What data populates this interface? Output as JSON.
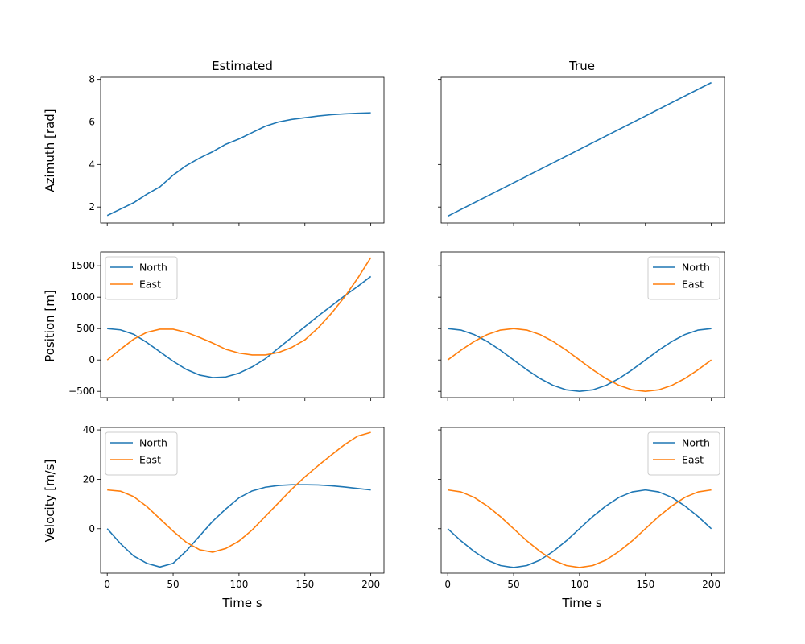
{
  "colors": {
    "north": "#1f77b4",
    "east": "#ff7f0e",
    "azimuth": "#1f77b4"
  },
  "column_titles": [
    "Estimated",
    "True"
  ],
  "row_labels": [
    "Azimuth [rad]",
    "Position [m]",
    "Velocity [m/s]"
  ],
  "xlabel": "Time s",
  "x_ticks": [
    "0",
    "50",
    "100",
    "150",
    "200"
  ],
  "legend_labels": [
    "North",
    "East"
  ],
  "chart_data": [
    {
      "type": "line",
      "panel": "azimuth-estimated",
      "title": "Estimated",
      "ylabel": "Azimuth [rad]",
      "xlim": [
        -5,
        210
      ],
      "ylim": [
        1.25,
        8.1
      ],
      "yticks": [
        2,
        4,
        6,
        8
      ],
      "grid": false,
      "x": [
        0,
        10,
        20,
        30,
        40,
        50,
        60,
        70,
        80,
        90,
        100,
        110,
        120,
        130,
        140,
        150,
        160,
        170,
        180,
        190,
        200
      ],
      "series": [
        {
          "values": [
            1.6,
            1.9,
            2.2,
            2.6,
            2.95,
            3.5,
            3.95,
            4.3,
            4.6,
            4.95,
            5.2,
            5.5,
            5.8,
            6.0,
            6.12,
            6.2,
            6.28,
            6.34,
            6.38,
            6.41,
            6.43
          ]
        }
      ]
    },
    {
      "type": "line",
      "panel": "azimuth-true",
      "title": "True",
      "xlim": [
        -5,
        210
      ],
      "ylim": [
        1.25,
        8.1
      ],
      "yticks": [
        2,
        4,
        6,
        8
      ],
      "grid": false,
      "x": [
        0,
        200
      ],
      "series": [
        {
          "values": [
            1.57,
            7.85
          ]
        }
      ]
    },
    {
      "type": "line",
      "panel": "position-estimated",
      "ylabel": "Position [m]",
      "xlim": [
        -5,
        210
      ],
      "ylim": [
        -600,
        1720
      ],
      "yticks": [
        -500,
        0,
        500,
        1000,
        1500
      ],
      "grid": false,
      "legend": "top-left",
      "x": [
        0,
        10,
        20,
        30,
        40,
        50,
        60,
        70,
        80,
        90,
        100,
        110,
        120,
        130,
        140,
        150,
        160,
        170,
        180,
        190,
        200
      ],
      "series": [
        {
          "name": "North",
          "values": [
            500,
            480,
            410,
            280,
            130,
            -20,
            -150,
            -240,
            -280,
            -270,
            -210,
            -110,
            20,
            190,
            360,
            530,
            700,
            860,
            1020,
            1170,
            1330
          ]
        },
        {
          "name": "East",
          "values": [
            0,
            170,
            330,
            440,
            490,
            490,
            440,
            360,
            270,
            170,
            110,
            80,
            80,
            120,
            200,
            320,
            510,
            740,
            1000,
            1300,
            1630
          ]
        }
      ]
    },
    {
      "type": "line",
      "panel": "position-true",
      "xlim": [
        -5,
        210
      ],
      "ylim": [
        -600,
        1720
      ],
      "yticks": [
        -500,
        0,
        500,
        1000,
        1500
      ],
      "grid": false,
      "legend": "top-right",
      "x": [
        0,
        10,
        20,
        30,
        40,
        50,
        60,
        70,
        80,
        90,
        100,
        110,
        120,
        130,
        140,
        150,
        160,
        170,
        180,
        190,
        200
      ],
      "series": [
        {
          "name": "North",
          "values": [
            500,
            476,
            405,
            294,
            155,
            0,
            -155,
            -294,
            -405,
            -476,
            -500,
            -476,
            -405,
            -294,
            -155,
            0,
            155,
            294,
            405,
            476,
            500
          ]
        },
        {
          "name": "East",
          "values": [
            0,
            155,
            294,
            405,
            476,
            500,
            476,
            405,
            294,
            155,
            0,
            -155,
            -294,
            -405,
            -476,
            -500,
            -476,
            -405,
            -294,
            -155,
            0
          ]
        }
      ]
    },
    {
      "type": "line",
      "panel": "velocity-estimated",
      "ylabel": "Velocity [m/s]",
      "xlabel": "Time s",
      "xlim": [
        -5,
        210
      ],
      "ylim": [
        -18,
        41
      ],
      "yticks": [
        0,
        20,
        40
      ],
      "xticks": [
        0,
        50,
        100,
        150,
        200
      ],
      "grid": false,
      "legend": "top-left",
      "x": [
        0,
        10,
        20,
        30,
        40,
        50,
        60,
        70,
        80,
        90,
        100,
        110,
        120,
        130,
        140,
        150,
        160,
        170,
        180,
        190,
        200
      ],
      "series": [
        {
          "name": "North",
          "values": [
            0,
            -6,
            -11,
            -14,
            -15.5,
            -14,
            -9,
            -3,
            3,
            8,
            12.5,
            15.3,
            16.8,
            17.5,
            17.8,
            17.8,
            17.7,
            17.4,
            16.9,
            16.3,
            15.7
          ]
        },
        {
          "name": "East",
          "values": [
            15.7,
            15.2,
            13,
            9,
            4,
            -1,
            -5.5,
            -8.5,
            -9.5,
            -8,
            -5,
            -0.5,
            5,
            10.5,
            16,
            21,
            25.5,
            29.8,
            34,
            37.5,
            39
          ]
        }
      ]
    },
    {
      "type": "line",
      "panel": "velocity-true",
      "xlabel": "Time s",
      "xlim": [
        -5,
        210
      ],
      "ylim": [
        -18,
        41
      ],
      "yticks": [
        0,
        20,
        40
      ],
      "xticks": [
        0,
        50,
        100,
        150,
        200
      ],
      "grid": false,
      "legend": "top-right",
      "x": [
        0,
        10,
        20,
        30,
        40,
        50,
        60,
        70,
        80,
        90,
        100,
        110,
        120,
        130,
        140,
        150,
        160,
        170,
        180,
        190,
        200
      ],
      "series": [
        {
          "name": "North",
          "values": [
            0,
            -4.9,
            -9.2,
            -12.7,
            -14.9,
            -15.7,
            -14.9,
            -12.7,
            -9.2,
            -4.9,
            0,
            4.9,
            9.2,
            12.7,
            14.9,
            15.7,
            14.9,
            12.7,
            9.2,
            4.9,
            0
          ]
        },
        {
          "name": "East",
          "values": [
            15.7,
            14.9,
            12.7,
            9.2,
            4.9,
            0,
            -4.9,
            -9.2,
            -12.7,
            -14.9,
            -15.7,
            -14.9,
            -12.7,
            -9.2,
            -4.9,
            0,
            4.9,
            9.2,
            12.7,
            14.9,
            15.7
          ]
        }
      ]
    }
  ]
}
